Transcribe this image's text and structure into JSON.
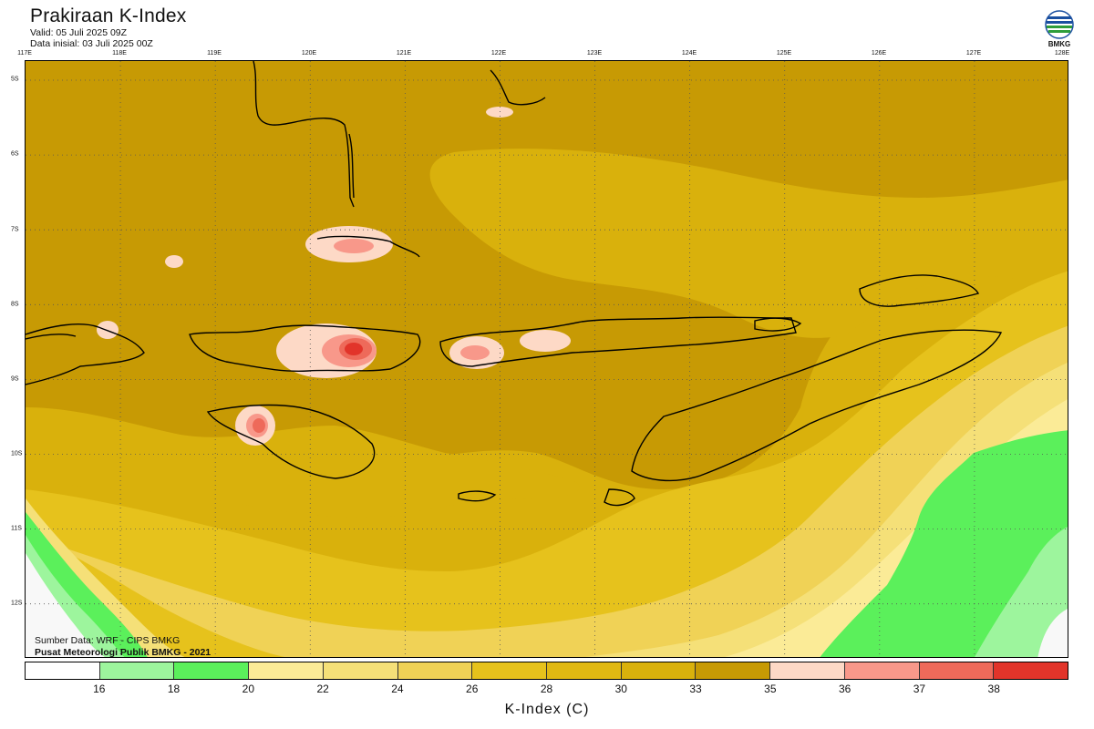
{
  "header": {
    "title": "Prakiraan K-Index",
    "valid": "Valid: 05 Juli 2025 09Z",
    "init": "Data inisial: 03 Juli 2025 00Z"
  },
  "logo": {
    "text": "BMKG"
  },
  "map": {
    "lon_labels": [
      "117E",
      "118E",
      "119E",
      "120E",
      "121E",
      "122E",
      "123E",
      "124E",
      "125E",
      "126E",
      "127E",
      "128E"
    ],
    "lat_labels": [
      "5S",
      "6S",
      "7S",
      "8S",
      "9S",
      "10S",
      "11S",
      "12S"
    ],
    "colors": {
      "k_26_28": "#e6c21c",
      "k_30_33": "#d9b10c",
      "k_33_35": "#c79a04",
      "k_24_26": "#f0d256",
      "k_22_24": "#f5e078",
      "k_20_22": "#fbeb97",
      "k_18_20": "#5bf05b",
      "k_16_18": "#9df59d",
      "k_lt16": "#f8f8f8",
      "k_35_36": "#fdd9c6",
      "k_36_37": "#f8988a",
      "k_37_38": "#ee6a5a",
      "k_gt38": "#e2342a",
      "coast": "#000000"
    }
  },
  "credits": {
    "source": "Sumber Data: WRF - CIPS BMKG",
    "center": "Pusat Meteorologi Publik BMKG - 2021"
  },
  "colorbar": {
    "colors": [
      "#ffffff",
      "#9df59d",
      "#5bf05b",
      "#fbeb97",
      "#f5e078",
      "#f0d256",
      "#e6c21c",
      "#e0b812",
      "#d9b10c",
      "#c79a04",
      "#fdd9c6",
      "#f8988a",
      "#ee6a5a",
      "#e2342a"
    ],
    "ticks": [
      "16",
      "18",
      "20",
      "22",
      "24",
      "26",
      "28",
      "30",
      "33",
      "35",
      "36",
      "37",
      "38"
    ],
    "title": "K-Index (C)"
  }
}
